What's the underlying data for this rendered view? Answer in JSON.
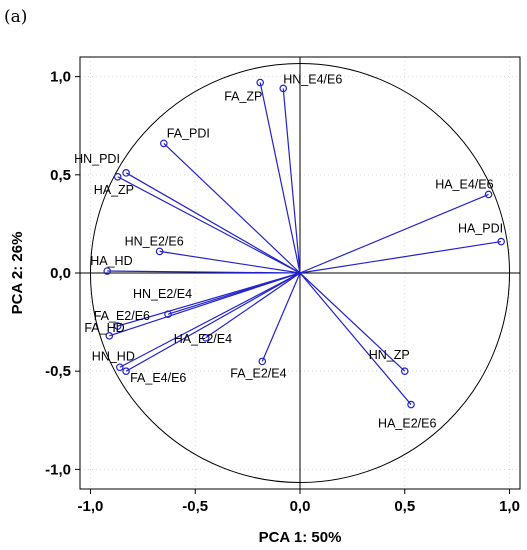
{
  "panel_label": "(a)",
  "chart_data": {
    "type": "scatter",
    "title": "",
    "xlabel": "PCA 1: 50%",
    "ylabel": "PCA 2: 26%",
    "xlim": [
      -1.05,
      1.05
    ],
    "ylim": [
      -1.1,
      1.1
    ],
    "xticks": [
      -1.0,
      -0.5,
      0.0,
      0.5,
      1.0
    ],
    "yticks": [
      -1.0,
      -0.5,
      0.0,
      0.5,
      1.0
    ],
    "xtick_labels": [
      "-1,0",
      "-0,5",
      "0,0",
      "0,5",
      "1,0"
    ],
    "ytick_labels": [
      "-1,0",
      "-0,5",
      "0,0",
      "0,5",
      "1,0"
    ],
    "grid": true,
    "unit_circle": true,
    "vectors_from_origin": true,
    "series_color": "#2222cc",
    "points": [
      {
        "label": "HN_E4/E6",
        "x": -0.08,
        "y": 0.94
      },
      {
        "label": "FA_ZP",
        "x": -0.19,
        "y": 0.97
      },
      {
        "label": "FA_PDI",
        "x": -0.65,
        "y": 0.66
      },
      {
        "label": "HN_PDI",
        "x": -0.83,
        "y": 0.51
      },
      {
        "label": "HA_ZP",
        "x": -0.87,
        "y": 0.49
      },
      {
        "label": "HA_E4/E6",
        "x": 0.9,
        "y": 0.4
      },
      {
        "label": "HA_PDI",
        "x": 0.96,
        "y": 0.16
      },
      {
        "label": "HN_E2/E6",
        "x": -0.67,
        "y": 0.11
      },
      {
        "label": "HA_HD",
        "x": -0.92,
        "y": 0.01
      },
      {
        "label": "HN_E2/E4",
        "x": -0.63,
        "y": -0.21
      },
      {
        "label": "FA_E2/E6",
        "x": -0.87,
        "y": -0.27
      },
      {
        "label": "FA_HD",
        "x": -0.91,
        "y": -0.32
      },
      {
        "label": "HA_E2/E4",
        "x": -0.45,
        "y": -0.33
      },
      {
        "label": "HN_HD",
        "x": -0.86,
        "y": -0.48
      },
      {
        "label": "FA_E4/E6",
        "x": -0.83,
        "y": -0.5
      },
      {
        "label": "FA_E2/E4",
        "x": -0.18,
        "y": -0.45
      },
      {
        "label": "HN_ZP",
        "x": 0.5,
        "y": -0.5
      },
      {
        "label": "HA_E2/E6",
        "x": 0.53,
        "y": -0.67
      }
    ]
  }
}
